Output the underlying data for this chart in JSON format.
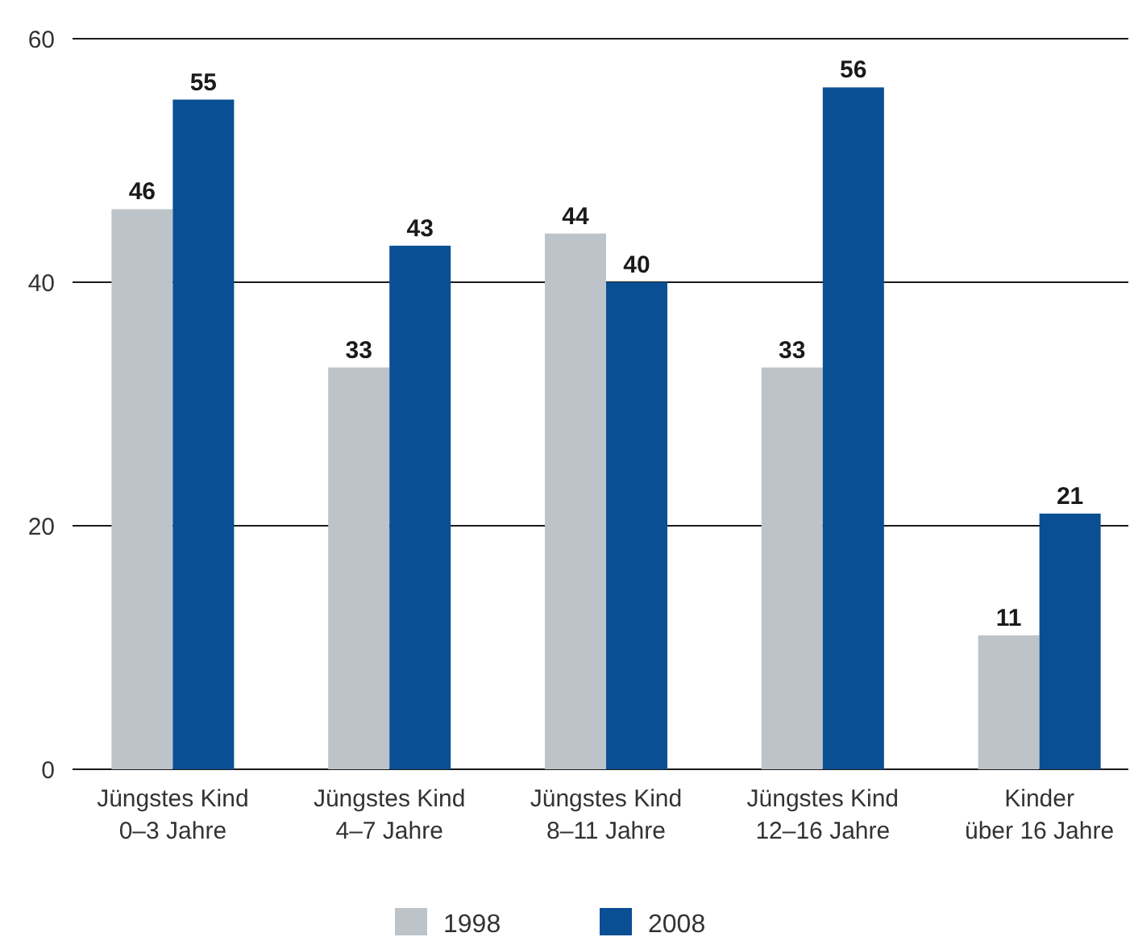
{
  "chart_data": {
    "type": "bar",
    "categories": [
      "Jüngstes Kind\n0–3 Jahre",
      "Jüngstes Kind\n4–7 Jahre",
      "Jüngstes Kind\n8–11 Jahre",
      "Jüngstes Kind\n12–16 Jahre",
      "Kinder\nüber 16 Jahre"
    ],
    "series": [
      {
        "name": "1998",
        "color": "#bcc3c9",
        "values": [
          46,
          33,
          44,
          33,
          11
        ]
      },
      {
        "name": "2008",
        "color": "#0a4f94",
        "values": [
          55,
          43,
          40,
          56,
          21
        ]
      }
    ],
    "ylim": [
      0,
      60
    ],
    "yticks": [
      0,
      20,
      40,
      60
    ],
    "grid": "y",
    "legend": "bottom",
    "data_labels": true
  }
}
